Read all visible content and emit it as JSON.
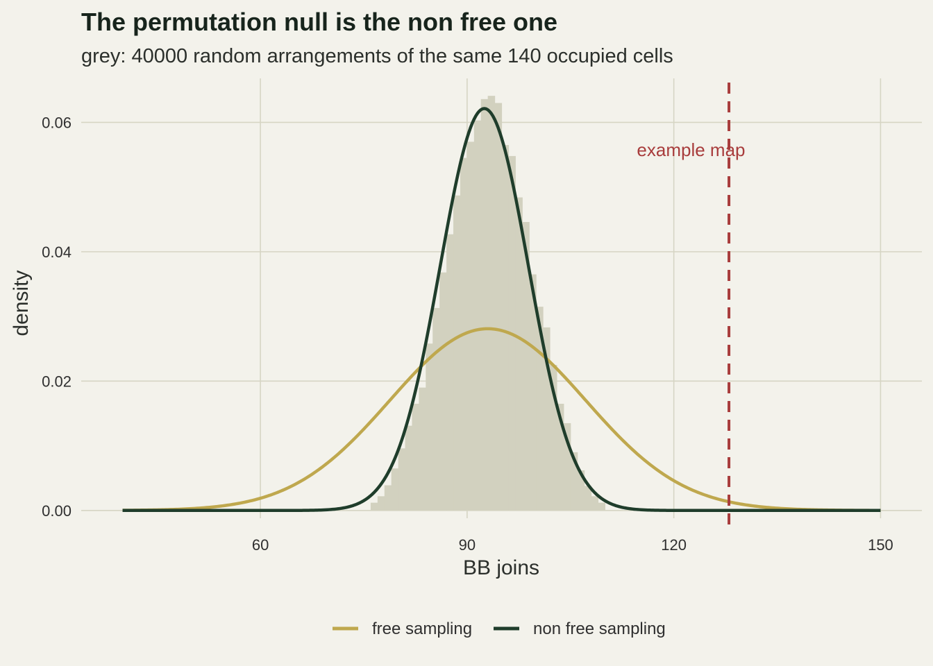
{
  "chart_data": {
    "type": "histogram",
    "title": "The permutation null is the non free one",
    "subtitle": "grey: 40000 random arrangements of the same 140 occupied cells",
    "xlabel": "BB joins",
    "ylabel": "density",
    "xlim": [
      34,
      156
    ],
    "ylim": [
      -0.0012,
      0.0668
    ],
    "x_ticks": [
      60,
      90,
      120,
      150
    ],
    "y_ticks": [
      0.0,
      0.02,
      0.04,
      0.06
    ],
    "x_tick_labels": [
      "60",
      "90",
      "120",
      "150"
    ],
    "y_tick_labels": [
      "0.00",
      "0.02",
      "0.04",
      "0.06"
    ],
    "grid": true,
    "legend_position": "bottom",
    "histogram": {
      "bin_width": 1,
      "color": "#d2d1bf",
      "bins": [
        {
          "x0": 76,
          "density": 0.0012
        },
        {
          "x0": 77,
          "density": 0.0022
        },
        {
          "x0": 78,
          "density": 0.0039
        },
        {
          "x0": 79,
          "density": 0.0065
        },
        {
          "x0": 80,
          "density": 0.0096
        },
        {
          "x0": 81,
          "density": 0.0131
        },
        {
          "x0": 82,
          "density": 0.0165
        },
        {
          "x0": 83,
          "density": 0.019
        },
        {
          "x0": 84,
          "density": 0.0258
        },
        {
          "x0": 85,
          "density": 0.0313
        },
        {
          "x0": 86,
          "density": 0.0368
        },
        {
          "x0": 87,
          "density": 0.0427
        },
        {
          "x0": 88,
          "density": 0.0487
        },
        {
          "x0": 89,
          "density": 0.0545
        },
        {
          "x0": 90,
          "density": 0.057
        },
        {
          "x0": 91,
          "density": 0.0603
        },
        {
          "x0": 92,
          "density": 0.0636
        },
        {
          "x0": 93,
          "density": 0.0641
        },
        {
          "x0": 94,
          "density": 0.063
        },
        {
          "x0": 95,
          "density": 0.0565
        },
        {
          "x0": 96,
          "density": 0.0548
        },
        {
          "x0": 97,
          "density": 0.0484
        },
        {
          "x0": 98,
          "density": 0.0446
        },
        {
          "x0": 99,
          "density": 0.0365
        },
        {
          "x0": 100,
          "density": 0.0315
        },
        {
          "x0": 101,
          "density": 0.0283
        },
        {
          "x0": 102,
          "density": 0.0225
        },
        {
          "x0": 103,
          "density": 0.0165
        },
        {
          "x0": 104,
          "density": 0.0135
        },
        {
          "x0": 105,
          "density": 0.009
        },
        {
          "x0": 106,
          "density": 0.0062
        },
        {
          "x0": 107,
          "density": 0.0038
        },
        {
          "x0": 108,
          "density": 0.0022
        },
        {
          "x0": 109,
          "density": 0.0012
        }
      ]
    },
    "series": [
      {
        "name": "free sampling",
        "distribution": "normal",
        "mean": 93.0,
        "sd": 14.2,
        "color": "#bfa84e",
        "x_range": [
          40,
          150
        ]
      },
      {
        "name": "non free sampling",
        "distribution": "normal",
        "mean": 92.5,
        "sd": 6.42,
        "color": "#1f3d2b",
        "x_range": [
          40,
          150
        ]
      }
    ],
    "annotations": [
      {
        "type": "vline",
        "x": 128,
        "style": "dashed",
        "color": "#a83c3c",
        "label": "example map",
        "label_x": 122.5,
        "label_y": 0.0548
      }
    ]
  }
}
